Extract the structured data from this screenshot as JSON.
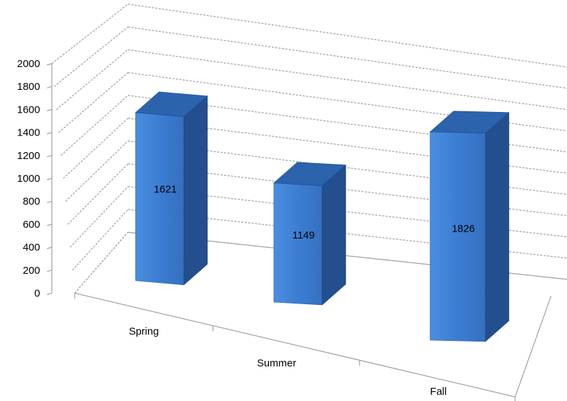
{
  "chart_data": {
    "type": "bar",
    "categories": [
      "Spring",
      "Summer",
      "Fall"
    ],
    "values": [
      1621,
      1149,
      1826
    ],
    "ylim": [
      0,
      2000
    ],
    "yticks": [
      0,
      200,
      400,
      600,
      800,
      1000,
      1200,
      1400,
      1600,
      1800,
      2000
    ],
    "grid": true,
    "legend": "none",
    "colors": {
      "front": "#3d7fd4",
      "side": "#234f8f",
      "top": "#2b63ad",
      "grid": "#a8a8a8"
    }
  }
}
